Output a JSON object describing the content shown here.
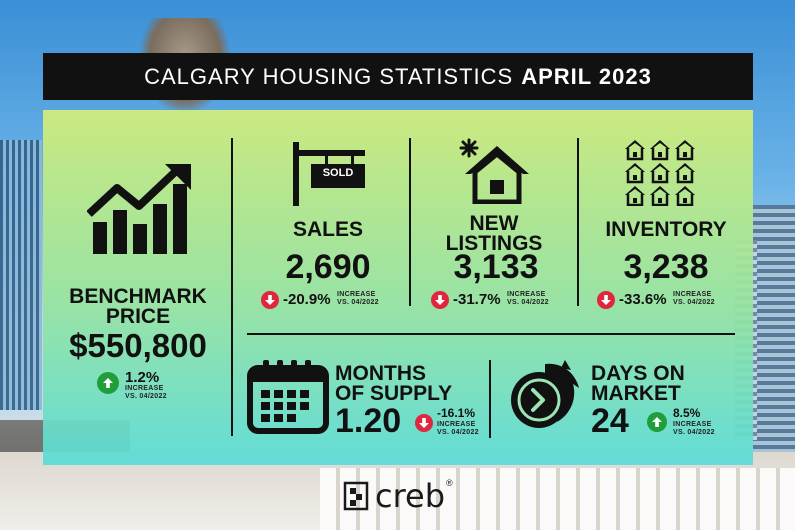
{
  "title": {
    "prefix": "CALGARY HOUSING STATISTICS",
    "period": "APRIL 2023"
  },
  "benchmark": {
    "heading_line1": "BENCHMARK",
    "heading_line2": "PRICE",
    "value": "$550,800",
    "change": "1.2%",
    "change_label": "INCREASE",
    "vs_label": "VS. 04/2022"
  },
  "sales": {
    "icon_label": "SOLD",
    "heading": "SALES",
    "value": "2,690",
    "change": "-20.9%",
    "change_label": "INCREASE",
    "vs_label": "VS. 04/2022"
  },
  "new_listings": {
    "heading_line1": "NEW",
    "heading_line2": "LISTINGS",
    "value": "3,133",
    "change": "-31.7%",
    "change_label": "INCREASE",
    "vs_label": "VS. 04/2022"
  },
  "inventory": {
    "heading": "INVENTORY",
    "value": "3,238",
    "change": "-33.6%",
    "change_label": "INCREASE",
    "vs_label": "VS. 04/2022"
  },
  "months_of_supply": {
    "heading_line1": "MONTHS",
    "heading_line2": "OF SUPPLY",
    "value": "1.20",
    "change": "-16.1%",
    "change_label": "INCREASE",
    "vs_label": "VS. 04/2022"
  },
  "days_on_market": {
    "heading_line1": "DAYS ON",
    "heading_line2": "MARKET",
    "value": "24",
    "change": "8.5%",
    "change_label": "INCREASE",
    "vs_label": "VS. 04/2022"
  },
  "brand": {
    "name": "creb",
    "mark": "®"
  },
  "colors": {
    "down": "#e0263f",
    "up": "#1f9e3a",
    "title_bg": "#111111"
  }
}
